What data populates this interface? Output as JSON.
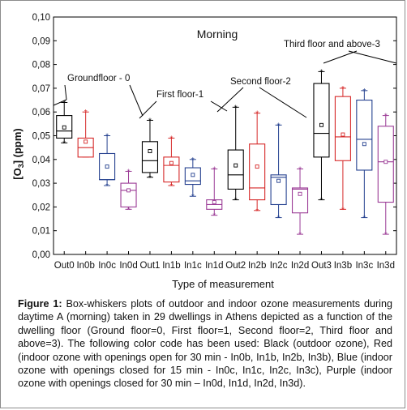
{
  "chart_data": {
    "type": "box",
    "title": "Morning",
    "xlabel": "Type of measurement",
    "ylabel_main": "[O",
    "ylabel_sub": "3",
    "ylabel_tail": "] (ppm)",
    "ylim": [
      0,
      0.1
    ],
    "yticks": [
      "0,00",
      "0,01",
      "0,02",
      "0,03",
      "0,04",
      "0,05",
      "0,06",
      "0,07",
      "0,08",
      "0,09",
      "0,10"
    ],
    "categories": [
      "Out0",
      "In0b",
      "In0c",
      "In0d",
      "Out1",
      "In1b",
      "In1c",
      "In1d",
      "Out2",
      "In2b",
      "In2c",
      "In2d",
      "Out3",
      "In3b",
      "In3c",
      "In3d"
    ],
    "colors": {
      "Out": "#000000",
      "b": "#d62828",
      "c": "#24408f",
      "d": "#9b3b96"
    },
    "boxes": [
      {
        "cat": "Out0",
        "color": "Out",
        "q1": 0.049,
        "median": 0.052,
        "q3": 0.0585,
        "mean": 0.0535,
        "wlo": 0.047,
        "whi": 0.064,
        "outliers": [
          0.047,
          0.064
        ]
      },
      {
        "cat": "In0b",
        "color": "b",
        "q1": 0.041,
        "median": 0.045,
        "q3": 0.049,
        "mean": 0.0475,
        "wlo": 0.041,
        "whi": 0.06,
        "outliers": [
          0.06
        ]
      },
      {
        "cat": "In0c",
        "color": "c",
        "q1": 0.0315,
        "median": 0.0315,
        "q3": 0.0425,
        "mean": 0.037,
        "wlo": 0.029,
        "whi": 0.05,
        "outliers": [
          0.029,
          0.05
        ]
      },
      {
        "cat": "In0d",
        "color": "d",
        "q1": 0.02,
        "median": 0.027,
        "q3": 0.03,
        "mean": 0.027,
        "wlo": 0.019,
        "whi": 0.035,
        "outliers": [
          0.019,
          0.035
        ]
      },
      {
        "cat": "Out1",
        "color": "Out",
        "q1": 0.0345,
        "median": 0.0395,
        "q3": 0.0475,
        "mean": 0.0435,
        "wlo": 0.0325,
        "whi": 0.0565,
        "outliers": [
          0.0325,
          0.0565
        ]
      },
      {
        "cat": "In1b",
        "color": "b",
        "q1": 0.0305,
        "median": 0.0375,
        "q3": 0.041,
        "mean": 0.0385,
        "wlo": 0.029,
        "whi": 0.049,
        "outliers": [
          0.029,
          0.049
        ]
      },
      {
        "cat": "In1c",
        "color": "c",
        "q1": 0.0295,
        "median": 0.031,
        "q3": 0.0365,
        "mean": 0.0335,
        "wlo": 0.0245,
        "whi": 0.04,
        "outliers": [
          0.0245,
          0.04
        ]
      },
      {
        "cat": "In1d",
        "color": "d",
        "q1": 0.019,
        "median": 0.021,
        "q3": 0.023,
        "mean": 0.022,
        "wlo": 0.0165,
        "whi": 0.036,
        "outliers": [
          0.0165,
          0.036
        ]
      },
      {
        "cat": "Out2",
        "color": "Out",
        "q1": 0.0275,
        "median": 0.0335,
        "q3": 0.044,
        "mean": 0.0375,
        "wlo": 0.023,
        "whi": 0.062,
        "outliers": [
          0.023,
          0.062
        ]
      },
      {
        "cat": "In2b",
        "color": "b",
        "q1": 0.023,
        "median": 0.028,
        "q3": 0.0465,
        "mean": 0.037,
        "wlo": 0.0185,
        "whi": 0.0595,
        "outliers": [
          0.0185,
          0.0595
        ]
      },
      {
        "cat": "In2c",
        "color": "c",
        "q1": 0.021,
        "median": 0.0325,
        "q3": 0.0335,
        "mean": 0.031,
        "wlo": 0.0155,
        "whi": 0.0545,
        "outliers": [
          0.0155,
          0.0545
        ]
      },
      {
        "cat": "In2d",
        "color": "d",
        "q1": 0.0175,
        "median": 0.0275,
        "q3": 0.028,
        "mean": 0.0255,
        "wlo": 0.0085,
        "whi": 0.036,
        "outliers": [
          0.0085,
          0.036
        ]
      },
      {
        "cat": "Out3",
        "color": "Out",
        "q1": 0.041,
        "median": 0.051,
        "q3": 0.072,
        "mean": 0.0545,
        "wlo": 0.023,
        "whi": 0.077,
        "outliers": [
          0.023,
          0.077
        ]
      },
      {
        "cat": "In3b",
        "color": "b",
        "q1": 0.0395,
        "median": 0.0495,
        "q3": 0.0665,
        "mean": 0.0505,
        "wlo": 0.019,
        "whi": 0.07,
        "outliers": [
          0.019,
          0.07
        ]
      },
      {
        "cat": "In3c",
        "color": "c",
        "q1": 0.0355,
        "median": 0.0485,
        "q3": 0.065,
        "mean": 0.0465,
        "wlo": 0.0155,
        "whi": 0.069,
        "outliers": [
          0.0155,
          0.069
        ]
      },
      {
        "cat": "In3d",
        "color": "d",
        "q1": 0.022,
        "median": 0.039,
        "q3": 0.054,
        "mean": 0.039,
        "wlo": 0.0085,
        "whi": 0.0585,
        "outliers": [
          0.0085,
          0.0585
        ]
      }
    ],
    "annotations": [
      {
        "text": "Groundfloor - 0"
      },
      {
        "text": "First floor-1"
      },
      {
        "text": "Second floor-2"
      },
      {
        "text": "Third floor and above-3"
      }
    ]
  },
  "caption": {
    "label": "Figure 1:",
    "text": " Box-whiskers plots of outdoor and indoor ozone measurements during daytime A (morning) taken in 29 dwellings in Athens depicted as a function of the dwelling floor (Ground floor=0, First floor=1, Second floor=2, Third floor and above=3). The following color code has been used: Black (outdoor ozone), Red (indoor ozone with openings open for 30 min - In0b, In1b, In2b, In3b), Blue (indoor ozone with openings closed for 15 min - In0c, In1c, In2c, In3c), Purple (indoor ozone with openings closed for 30 min – In0d, In1d, In2d, In3d)."
  }
}
